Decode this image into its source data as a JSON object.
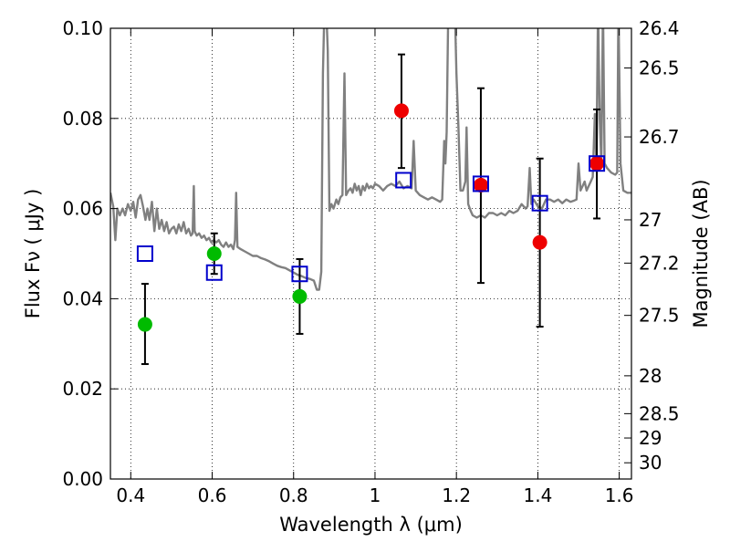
{
  "chart_data": {
    "type": "scatter",
    "xlabel": "Wavelength  λ (μm)",
    "ylabel": "Flux  Fν  ( μJy )",
    "y2label": "Magnitude (AB)",
    "xlim": [
      0.35,
      1.63
    ],
    "ylim": [
      0.0,
      0.1
    ],
    "grid": true,
    "x_ticks": [
      0.4,
      0.6,
      0.8,
      1.0,
      1.2,
      1.4,
      1.6
    ],
    "x_tick_labels": [
      "0.4",
      "0.6",
      "0.8",
      "1",
      "1.2",
      "1.4",
      "1.6"
    ],
    "y_ticks": [
      0.0,
      0.02,
      0.04,
      0.06,
      0.08,
      0.1
    ],
    "y_tick_labels": [
      "0.00",
      "0.02",
      "0.04",
      "0.06",
      "0.08",
      "0.10"
    ],
    "y2_ticks": [
      {
        "label": "26.4",
        "flux": 0.1
      },
      {
        "label": "26.5",
        "flux": 0.0912
      },
      {
        "label": "26.7",
        "flux": 0.0759
      },
      {
        "label": "27",
        "flux": 0.0575
      },
      {
        "label": "27.2",
        "flux": 0.0479
      },
      {
        "label": "27.5",
        "flux": 0.0363
      },
      {
        "label": "28",
        "flux": 0.0229
      },
      {
        "label": "28.5",
        "flux": 0.0145
      },
      {
        "label": "29",
        "flux": 0.0091
      },
      {
        "label": "30",
        "flux": 0.0036
      }
    ],
    "series": [
      {
        "color": "#808080",
        "kind": "line",
        "points": [
          [
            0.35,
            0.0635
          ],
          [
            0.357,
            0.0605
          ],
          [
            0.362,
            0.053
          ],
          [
            0.367,
            0.06
          ],
          [
            0.373,
            0.0585
          ],
          [
            0.38,
            0.06
          ],
          [
            0.386,
            0.0585
          ],
          [
            0.393,
            0.061
          ],
          [
            0.4,
            0.0595
          ],
          [
            0.406,
            0.0615
          ],
          [
            0.412,
            0.058
          ],
          [
            0.418,
            0.062
          ],
          [
            0.424,
            0.063
          ],
          [
            0.43,
            0.0605
          ],
          [
            0.436,
            0.0575
          ],
          [
            0.441,
            0.06
          ],
          [
            0.446,
            0.0575
          ],
          [
            0.452,
            0.0615
          ],
          [
            0.458,
            0.055
          ],
          [
            0.464,
            0.06
          ],
          [
            0.47,
            0.0555
          ],
          [
            0.476,
            0.0575
          ],
          [
            0.482,
            0.055
          ],
          [
            0.488,
            0.057
          ],
          [
            0.494,
            0.0545
          ],
          [
            0.5,
            0.0555
          ],
          [
            0.506,
            0.056
          ],
          [
            0.512,
            0.0545
          ],
          [
            0.518,
            0.0565
          ],
          [
            0.524,
            0.055
          ],
          [
            0.53,
            0.057
          ],
          [
            0.536,
            0.0545
          ],
          [
            0.542,
            0.0555
          ],
          [
            0.548,
            0.054
          ],
          [
            0.552,
            0.0545
          ],
          [
            0.555,
            0.065
          ],
          [
            0.557,
            0.055
          ],
          [
            0.562,
            0.054
          ],
          [
            0.568,
            0.0545
          ],
          [
            0.574,
            0.0535
          ],
          [
            0.58,
            0.054
          ],
          [
            0.586,
            0.053
          ],
          [
            0.592,
            0.0535
          ],
          [
            0.598,
            0.0525
          ],
          [
            0.604,
            0.053
          ],
          [
            0.61,
            0.0525
          ],
          [
            0.616,
            0.053
          ],
          [
            0.622,
            0.052
          ],
          [
            0.628,
            0.0515
          ],
          [
            0.634,
            0.0525
          ],
          [
            0.64,
            0.0515
          ],
          [
            0.646,
            0.052
          ],
          [
            0.652,
            0.051
          ],
          [
            0.656,
            0.053
          ],
          [
            0.659,
            0.0635
          ],
          [
            0.662,
            0.0515
          ],
          [
            0.67,
            0.051
          ],
          [
            0.68,
            0.0505
          ],
          [
            0.69,
            0.05
          ],
          [
            0.7,
            0.0495
          ],
          [
            0.71,
            0.0495
          ],
          [
            0.72,
            0.049
          ],
          [
            0.73,
            0.0487
          ],
          [
            0.74,
            0.0483
          ],
          [
            0.75,
            0.0478
          ],
          [
            0.76,
            0.0473
          ],
          [
            0.77,
            0.047
          ],
          [
            0.78,
            0.0468
          ],
          [
            0.79,
            0.0463
          ],
          [
            0.8,
            0.0458
          ],
          [
            0.81,
            0.0453
          ],
          [
            0.82,
            0.045
          ],
          [
            0.83,
            0.0446
          ],
          [
            0.84,
            0.0444
          ],
          [
            0.85,
            0.044
          ],
          [
            0.857,
            0.042
          ],
          [
            0.863,
            0.042
          ],
          [
            0.868,
            0.046
          ],
          [
            0.872,
            0.09
          ],
          [
            0.876,
            0.105
          ],
          [
            0.88,
            0.105
          ],
          [
            0.884,
            0.095
          ],
          [
            0.888,
            0.0595
          ],
          [
            0.893,
            0.061
          ],
          [
            0.898,
            0.06
          ],
          [
            0.905,
            0.062
          ],
          [
            0.91,
            0.061
          ],
          [
            0.915,
            0.0625
          ],
          [
            0.92,
            0.063
          ],
          [
            0.925,
            0.09
          ],
          [
            0.929,
            0.063
          ],
          [
            0.935,
            0.064
          ],
          [
            0.94,
            0.0645
          ],
          [
            0.945,
            0.0635
          ],
          [
            0.95,
            0.0655
          ],
          [
            0.955,
            0.064
          ],
          [
            0.96,
            0.065
          ],
          [
            0.965,
            0.063
          ],
          [
            0.97,
            0.065
          ],
          [
            0.975,
            0.064
          ],
          [
            0.98,
            0.0655
          ],
          [
            0.985,
            0.0645
          ],
          [
            0.99,
            0.065
          ],
          [
            0.995,
            0.0645
          ],
          [
            1.0,
            0.0655
          ],
          [
            1.01,
            0.065
          ],
          [
            1.02,
            0.064
          ],
          [
            1.03,
            0.065
          ],
          [
            1.04,
            0.0655
          ],
          [
            1.05,
            0.065
          ],
          [
            1.06,
            0.066
          ],
          [
            1.07,
            0.0645
          ],
          [
            1.08,
            0.065
          ],
          [
            1.09,
            0.0645
          ],
          [
            1.095,
            0.075
          ],
          [
            1.1,
            0.064
          ],
          [
            1.11,
            0.063
          ],
          [
            1.12,
            0.0625
          ],
          [
            1.13,
            0.062
          ],
          [
            1.14,
            0.0625
          ],
          [
            1.15,
            0.062
          ],
          [
            1.16,
            0.0615
          ],
          [
            1.165,
            0.062
          ],
          [
            1.17,
            0.075
          ],
          [
            1.173,
            0.07
          ],
          [
            1.176,
            0.077
          ],
          [
            1.18,
            0.105
          ],
          [
            1.196,
            0.105
          ],
          [
            1.2,
            0.09
          ],
          [
            1.205,
            0.078
          ],
          [
            1.21,
            0.064
          ],
          [
            1.216,
            0.064
          ],
          [
            1.222,
            0.066
          ],
          [
            1.225,
            0.078
          ],
          [
            1.229,
            0.061
          ],
          [
            1.235,
            0.0595
          ],
          [
            1.24,
            0.0585
          ],
          [
            1.25,
            0.058
          ],
          [
            1.26,
            0.0585
          ],
          [
            1.27,
            0.058
          ],
          [
            1.28,
            0.059
          ],
          [
            1.29,
            0.059
          ],
          [
            1.3,
            0.0585
          ],
          [
            1.31,
            0.059
          ],
          [
            1.32,
            0.0585
          ],
          [
            1.33,
            0.0595
          ],
          [
            1.34,
            0.059
          ],
          [
            1.35,
            0.0595
          ],
          [
            1.36,
            0.061
          ],
          [
            1.37,
            0.06
          ],
          [
            1.375,
            0.0605
          ],
          [
            1.38,
            0.069
          ],
          [
            1.384,
            0.061
          ],
          [
            1.39,
            0.062
          ],
          [
            1.4,
            0.0605
          ],
          [
            1.41,
            0.06
          ],
          [
            1.42,
            0.062
          ],
          [
            1.43,
            0.062
          ],
          [
            1.44,
            0.0615
          ],
          [
            1.45,
            0.062
          ],
          [
            1.46,
            0.0612
          ],
          [
            1.47,
            0.062
          ],
          [
            1.48,
            0.0615
          ],
          [
            1.49,
            0.0618
          ],
          [
            1.495,
            0.062
          ],
          [
            1.5,
            0.07
          ],
          [
            1.505,
            0.064
          ],
          [
            1.51,
            0.065
          ],
          [
            1.515,
            0.066
          ],
          [
            1.52,
            0.064
          ],
          [
            1.53,
            0.066
          ],
          [
            1.535,
            0.067
          ],
          [
            1.54,
            0.081
          ],
          [
            1.544,
            0.07
          ],
          [
            1.548,
            0.105
          ],
          [
            1.552,
            0.08
          ],
          [
            1.556,
            0.07
          ],
          [
            1.56,
            0.105
          ],
          [
            1.564,
            0.07
          ],
          [
            1.57,
            0.069
          ],
          [
            1.58,
            0.068
          ],
          [
            1.59,
            0.0675
          ],
          [
            1.595,
            0.068
          ],
          [
            1.598,
            0.105
          ],
          [
            1.603,
            0.07
          ],
          [
            1.61,
            0.064
          ],
          [
            1.62,
            0.0635
          ],
          [
            1.63,
            0.0635
          ]
        ]
      },
      {
        "color": "#00bb00",
        "kind": "filled-circle",
        "x": [
          0.435,
          0.605,
          0.815
        ],
        "y": [
          0.0343,
          0.05,
          0.0405
        ],
        "yerr_low": [
          0.0255,
          0.0455,
          0.0322
        ],
        "yerr_high": [
          0.0433,
          0.0545,
          0.0488
        ]
      },
      {
        "color": "#ee0000",
        "kind": "filled-circle",
        "x": [
          1.065,
          1.26,
          1.405,
          1.545
        ],
        "y": [
          0.0817,
          0.0652,
          0.0525,
          0.07
        ],
        "yerr_low": [
          0.069,
          0.0435,
          0.0338,
          0.0578
        ],
        "yerr_high": [
          0.0942,
          0.0867,
          0.0711,
          0.082
        ]
      },
      {
        "color": "#0000cc",
        "kind": "open-square",
        "x": [
          0.435,
          0.605,
          0.815,
          1.07,
          1.26,
          1.405,
          1.545
        ],
        "y": [
          0.05,
          0.0458,
          0.0455,
          0.0663,
          0.0655,
          0.0612,
          0.07
        ]
      }
    ]
  }
}
